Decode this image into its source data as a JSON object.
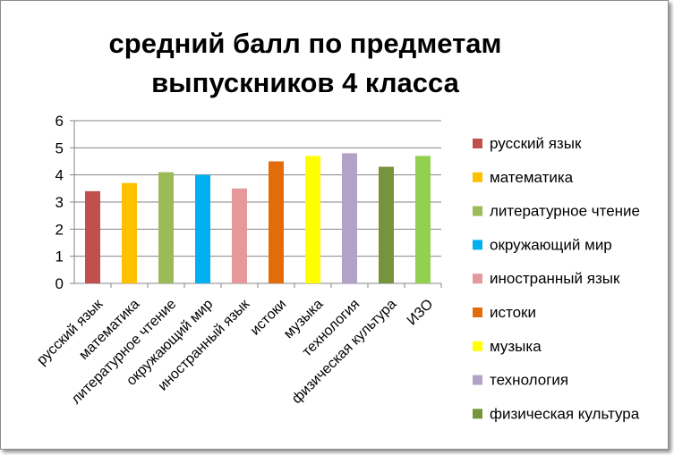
{
  "chart_data": {
    "type": "bar",
    "title_lines": [
      "средний балл по предметам",
      "выпускников  4 класса"
    ],
    "categories": [
      "русский язык",
      "математика",
      "литературное чтение",
      "окружающий мир",
      "иностранный язык",
      "истоки",
      "музыка",
      "технология",
      "физическая культура",
      "ИЗО"
    ],
    "values": [
      3.4,
      3.7,
      4.1,
      4.0,
      3.5,
      4.5,
      4.7,
      4.8,
      4.3,
      4.7
    ],
    "colors": [
      "#C0504D",
      "#FFC000",
      "#9BBB59",
      "#00B0F0",
      "#E6999A",
      "#E36C0A",
      "#FFFF00",
      "#B3A2C7",
      "#77933C",
      "#92D050"
    ],
    "yticks": [
      "0",
      "1",
      "2",
      "3",
      "4",
      "5",
      "6"
    ],
    "ylim": [
      0,
      6
    ],
    "grid": true,
    "legend_position": "right",
    "legend": [
      "русский язык",
      "математика",
      "литературное чтение",
      "окружающий мир",
      "иностранный язык",
      "истоки",
      "музыка",
      "технология",
      "физическая культура"
    ]
  }
}
